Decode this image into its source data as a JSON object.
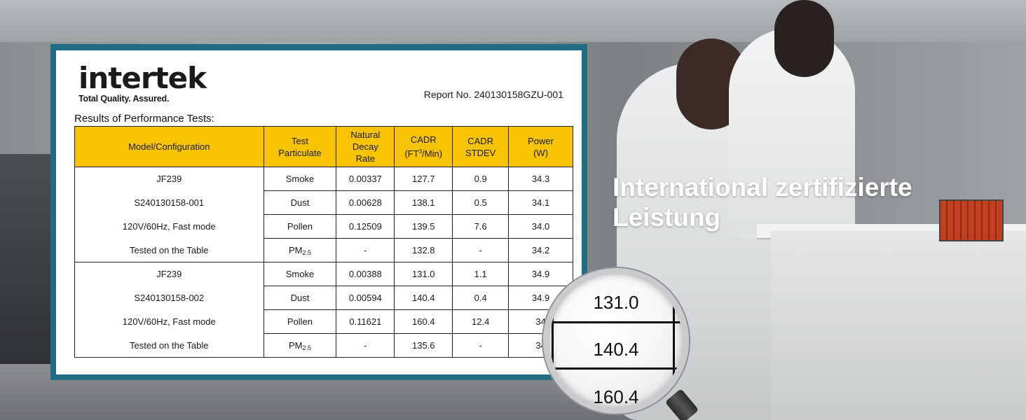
{
  "report": {
    "logo": {
      "wordmark": "intertek",
      "tagline": "Total Quality. Assured."
    },
    "report_no": "Report No. 240130158GZU-001",
    "section_title": "Results of Performance Tests:",
    "headers": {
      "model": "Model/Configuration",
      "particulate_1": "Test",
      "particulate_2": "Particulate",
      "decay_1": "Natural",
      "decay_2": "Decay",
      "decay_3": "Rate",
      "cadr_1": "CADR",
      "cadr_unit_pre": "(FT",
      "cadr_unit_sup": "3",
      "cadr_unit_post": "/Min)",
      "stdev_1": "CADR",
      "stdev_2": "STDEV",
      "power_1": "Power",
      "power_2": "(W)"
    },
    "rows": [
      {
        "cfg": "JF239",
        "particulate": "Smoke",
        "particulate_sub": "",
        "decay": "0.00337",
        "cadr": "127.7",
        "stdev": "0.9",
        "power": "34.3"
      },
      {
        "cfg": "S240130158-001",
        "particulate": "Dust",
        "particulate_sub": "",
        "decay": "0.00628",
        "cadr": "138.1",
        "stdev": "0.5",
        "power": "34.1"
      },
      {
        "cfg": "120V/60Hz, Fast mode",
        "particulate": "Pollen",
        "particulate_sub": "",
        "decay": "0.12509",
        "cadr": "139.5",
        "stdev": "7.6",
        "power": "34.0"
      },
      {
        "cfg": "Tested on the Table",
        "particulate": "PM",
        "particulate_sub": "2.5",
        "decay": "-",
        "cadr": "132.8",
        "stdev": "-",
        "power": "34.2"
      },
      {
        "cfg": "JF239",
        "particulate": "Smoke",
        "particulate_sub": "",
        "decay": "0.00388",
        "cadr": "131.0",
        "stdev": "1.1",
        "power": "34.9"
      },
      {
        "cfg": "S240130158-002",
        "particulate": "Dust",
        "particulate_sub": "",
        "decay": "0.00594",
        "cadr": "140.4",
        "stdev": "0.4",
        "power": "34.9"
      },
      {
        "cfg": "120V/60Hz, Fast mode",
        "particulate": "Pollen",
        "particulate_sub": "",
        "decay": "0.11621",
        "cadr": "160.4",
        "stdev": "12.4",
        "power": "34"
      },
      {
        "cfg": "Tested on the Table",
        "particulate": "PM",
        "particulate_sub": "2.5",
        "decay": "-",
        "cadr": "135.6",
        "stdev": "-",
        "power": "34"
      }
    ]
  },
  "headline": {
    "line1": "International zertifizierte",
    "line2": "Leistung"
  },
  "magnifier": {
    "values": [
      "131.0",
      "140.4",
      "160.4"
    ]
  },
  "colors": {
    "frame": "#1f6d82",
    "header_fill": "#f8c300"
  }
}
